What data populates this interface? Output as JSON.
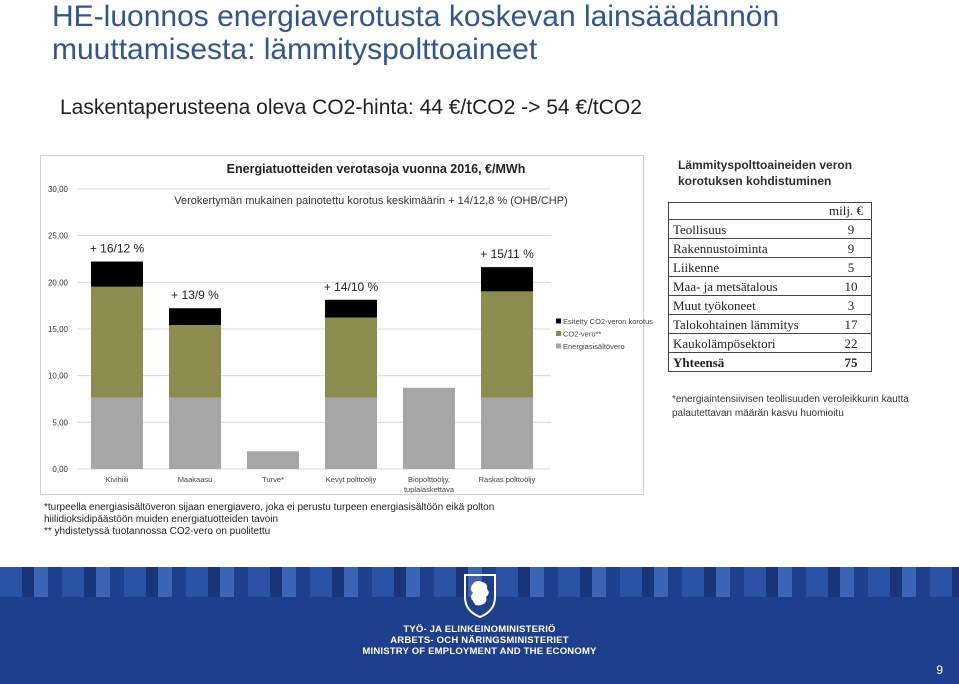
{
  "slide": {
    "title": "HE-luonnos energiaverotusta koskevan lainsäädännön muuttamisesta: lämmityspolttoaineet",
    "subtitle": "Laskentaperusteena oleva CO2-hinta: 44 €/tCO2 -> 54 €/tCO2",
    "page_number": "9"
  },
  "chart_data": {
    "type": "bar",
    "stacked": true,
    "title": "Energiatuotteiden verotasoja vuonna 2016, €/MWh",
    "annotation_main": "Verokertymän mukainen painotettu korotus keskimäärin + 14/12,8 % (OHB/CHP)",
    "categories": [
      "Kivihiili",
      "Maakaasu",
      "Turve*",
      "Kevyt polttoöljy",
      "Biopolttoöljy, tuplalaskettava",
      "Raskas polttoöljy"
    ],
    "series": [
      {
        "name": "Energiasisältövero",
        "color": "#a6a6a6",
        "values": [
          7.63,
          7.63,
          1.9,
          7.63,
          8.7,
          7.63
        ]
      },
      {
        "name": "CO2-vero**",
        "color": "#8c8c4f",
        "values": [
          11.9,
          7.8,
          0,
          8.6,
          0,
          11.4
        ]
      },
      {
        "name": "Esitetty CO2-veron korotus",
        "color": "#000000",
        "values": [
          2.7,
          1.8,
          0,
          1.9,
          0,
          2.6
        ]
      }
    ],
    "bar_labels": [
      "+ 16/12 %",
      "+ 13/9 %",
      "",
      "+ 14/10 %",
      "",
      "+ 15/11 %"
    ],
    "y_ticks": [
      "0,00",
      "5,00",
      "10,00",
      "15,00",
      "20,00",
      "25,00",
      "30,00"
    ],
    "ylim": [
      0,
      30
    ],
    "legend_position": "right"
  },
  "side": {
    "heading_line1": "Lämmityspolttoaineiden veron",
    "heading_line2": "korotuksen kohdistuminen",
    "unit": "milj. €",
    "rows": [
      {
        "label": "Teollisuus",
        "value": "9"
      },
      {
        "label": "Rakennustoiminta",
        "value": "9"
      },
      {
        "label": "Liikenne",
        "value": "5"
      },
      {
        "label": "Maa- ja metsätalous",
        "value": "10"
      },
      {
        "label": "Muut työkoneet",
        "value": "3"
      },
      {
        "label": "Talokohtainen lämmitys",
        "value": "17"
      },
      {
        "label": "Kaukolämpösektori",
        "value": "22"
      }
    ],
    "total": {
      "label": "Yhteensä",
      "value": "75"
    },
    "note": "*energiaintensiivisen teollisuuden veroleikkurin kautta palautettavan määrän kasvu huomioitu"
  },
  "footnotes": {
    "line1": "*turpeella energiasisältöveron sijaan energiavero, joka ei perustu turpeen energiasisältöön eikä polton",
    "line2": "hiilidioksidipäästöön muiden energiatuotteiden tavoin",
    "line3": "** yhdistetyssä tuotannossa CO2-vero on puolitettu"
  },
  "footer": {
    "ministry_fi": "TYÖ- JA ELINKEINOMINISTERIÖ",
    "ministry_sv": "ARBETS- OCH NÄRINGSMINISTERIET",
    "ministry_en": "MINISTRY OF EMPLOYMENT AND THE ECONOMY",
    "logo_icon": "lion-crest-icon",
    "colors": {
      "band": "#1d3f8c",
      "title": "#2f5597"
    }
  }
}
